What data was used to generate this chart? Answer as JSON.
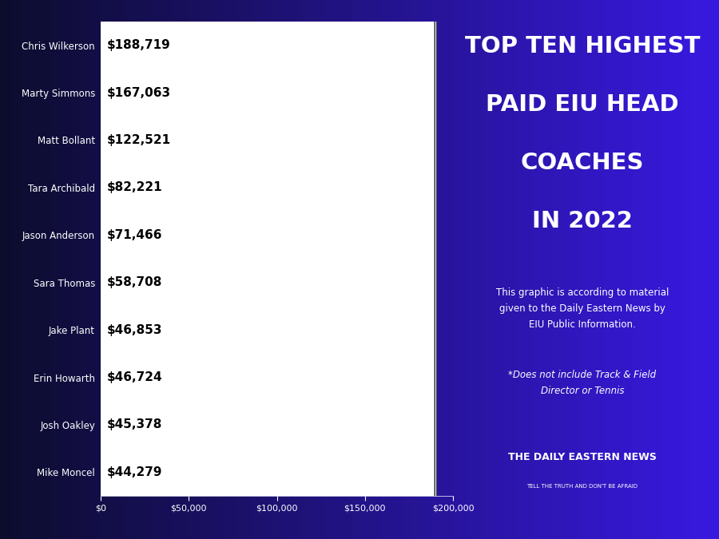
{
  "coaches": [
    "Mike Moncel",
    "Josh Oakley",
    "Erin Howarth",
    "Jake Plant",
    "Sara Thomas",
    "Jason Anderson",
    "Tara Archibald",
    "Matt Bollant",
    "Marty Simmons",
    "Chris Wilkerson"
  ],
  "salaries": [
    44279,
    45378,
    46724,
    46853,
    58708,
    71466,
    82221,
    122521,
    167063,
    188719
  ],
  "labels": [
    "$44,279",
    "$45,378",
    "$46,724",
    "$46,853",
    "$58,708",
    "$71,466",
    "$82,221",
    "$122,521",
    "$167,063",
    "$188,719"
  ],
  "bar_color": "#ffffff",
  "bar_edge_color": "#000000",
  "title_line1": "TOP TEN HIGHEST",
  "title_line2": "PAID EIU HEAD",
  "title_line3": "COACHES",
  "title_line4": "IN 2022",
  "title_color": "#ffffff",
  "subtitle": "This graphic is according to material\ngiven to the Daily Eastern News by\nEIU Public Information.",
  "footnote": "*Does not include Track & Field\nDirector or Tennis",
  "xlim": [
    0,
    200000
  ],
  "xticks": [
    0,
    50000,
    100000,
    150000,
    200000
  ],
  "xtick_labels": [
    "$0",
    "$50,000",
    "$100,000",
    "$150,000",
    "$200,000"
  ],
  "newspaper_name": "THE DAILY EASTERN NEWS",
  "newspaper_tagline": "TELL THE TRUTH AND DON'T BE AFRAID"
}
